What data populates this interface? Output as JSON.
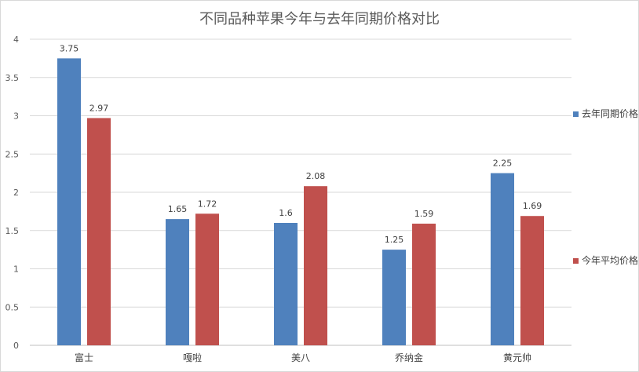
{
  "chart_data": {
    "type": "bar",
    "title": "不同品种苹果今年与去年同期价格对比",
    "categories": [
      "富士",
      "嘎啦",
      "美八",
      "乔纳金",
      "黄元帅"
    ],
    "series": [
      {
        "name": "去年同期价格",
        "values": [
          3.75,
          1.65,
          1.6,
          1.25,
          2.25
        ],
        "labels": [
          "3.75",
          "1.65",
          "1.6",
          "1.25",
          "2.25"
        ]
      },
      {
        "name": "今年平均价格",
        "values": [
          2.97,
          1.72,
          2.08,
          1.59,
          1.69
        ],
        "labels": [
          "2.97",
          "1.72",
          "2.08",
          "1.59",
          "1.69"
        ]
      }
    ],
    "yticks": [
      0,
      0.5,
      1,
      1.5,
      2,
      2.5,
      3,
      3.5,
      4
    ],
    "ytick_labels": [
      "0",
      "0.5",
      "1",
      "1.5",
      "2",
      "2.5",
      "3",
      "3.5",
      "4"
    ],
    "ylim": [
      0,
      4
    ],
    "grid": true,
    "legend_position": "right",
    "colors": [
      "#4f81bd",
      "#c0504d"
    ]
  }
}
